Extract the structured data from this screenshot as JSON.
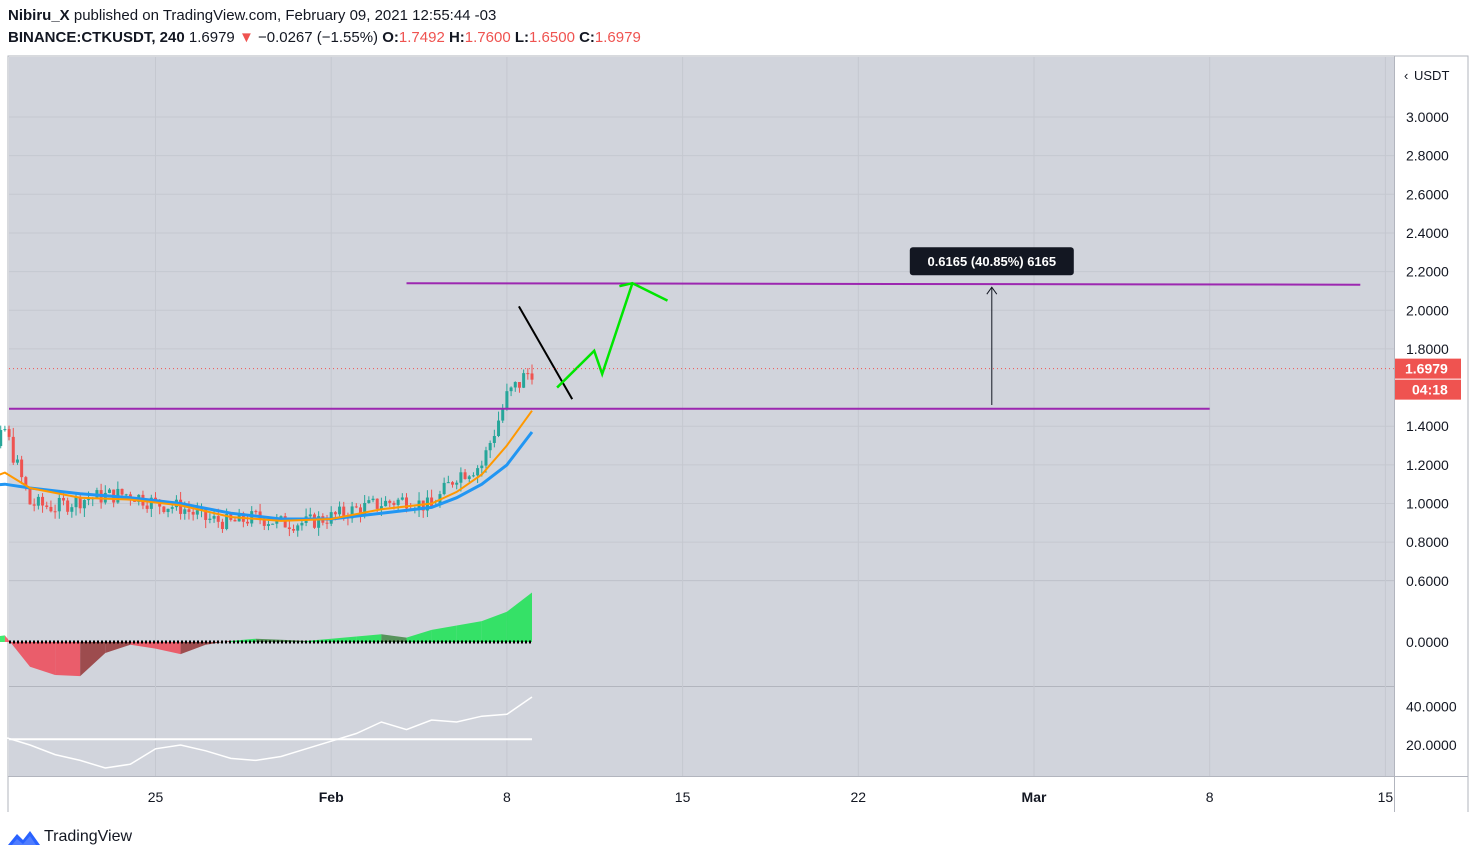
{
  "header": {
    "author": "Nibiru_X",
    "published_text": "published on TradingView.com, February 09, 2021 12:55:44 -03",
    "symbol": "BINANCE:CTKUSDT, 240",
    "last": "1.6979",
    "change": "−0.0267 (−1.55%)",
    "o_label": "O:",
    "o_value": "1.7492",
    "h_label": "H:",
    "h_value": "1.7600",
    "l_label": "L:",
    "l_value": "1.6500",
    "c_label": "C:",
    "c_value": "1.6979"
  },
  "footer": {
    "brand": "TradingView"
  },
  "colors": {
    "background": "#d1d4dc",
    "up": "#26a69a",
    "down": "#ef5350",
    "ema_fast": "#ff9800",
    "ema_slow": "#2196f3",
    "level_line": "#9c27b0",
    "projection": "#00e600",
    "trendline": "#000000",
    "last_price_tag": "#ef5350",
    "tooltip_bg": "#131722"
  },
  "chart_data": {
    "type": "candlestick",
    "price_scale": {
      "unit": "USDT",
      "ticks": [
        "3.0000",
        "2.8000",
        "2.6000",
        "2.4000",
        "2.2000",
        "2.0000",
        "1.8000",
        "1.4000",
        "1.2000",
        "1.0000",
        "0.8000",
        "0.6000"
      ],
      "ylim": [
        0.6,
        3.1
      ]
    },
    "time_axis": {
      "ticks": [
        "25",
        "Feb",
        "8",
        "15",
        "22",
        "Mar",
        "8",
        "15"
      ],
      "tick_dates": [
        "2021-01-25",
        "2021-02-01",
        "2021-02-08",
        "2021-02-15",
        "2021-02-22",
        "2021-03-01",
        "2021-03-08",
        "2021-03-15"
      ],
      "xlim": [
        "2021-01-17",
        "2021-03-15"
      ]
    },
    "last_price": {
      "value": "1.6979",
      "countdown": "04:18"
    },
    "close_series": [
      [
        "2021-01-17",
        1.15
      ],
      [
        "2021-01-18",
        1.08
      ],
      [
        "2021-01-19",
        1.38
      ],
      [
        "2021-01-20",
        1.0
      ],
      [
        "2021-01-21",
        0.98
      ],
      [
        "2021-01-22",
        1.02
      ],
      [
        "2021-01-23",
        1.04
      ],
      [
        "2021-01-24",
        1.05
      ],
      [
        "2021-01-25",
        1.0
      ],
      [
        "2021-01-26",
        0.98
      ],
      [
        "2021-01-27",
        0.92
      ],
      [
        "2021-01-28",
        0.9
      ],
      [
        "2021-01-29",
        0.93
      ],
      [
        "2021-01-30",
        0.9
      ],
      [
        "2021-01-31",
        0.9
      ],
      [
        "2021-02-01",
        0.93
      ],
      [
        "2021-02-02",
        0.97
      ],
      [
        "2021-02-03",
        1.0
      ],
      [
        "2021-02-04",
        1.02
      ],
      [
        "2021-02-05",
        0.98
      ],
      [
        "2021-02-06",
        1.15
      ],
      [
        "2021-02-07",
        1.2
      ],
      [
        "2021-02-08",
        1.55
      ],
      [
        "2021-02-09",
        1.6979
      ]
    ],
    "ema_fast": [
      [
        "2021-01-17",
        1.1
      ],
      [
        "2021-01-18",
        1.11
      ],
      [
        "2021-01-19",
        1.16
      ],
      [
        "2021-01-20",
        1.08
      ],
      [
        "2021-01-22",
        1.03
      ],
      [
        "2021-01-24",
        1.02
      ],
      [
        "2021-01-26",
        0.99
      ],
      [
        "2021-01-28",
        0.93
      ],
      [
        "2021-01-30",
        0.91
      ],
      [
        "2021-02-01",
        0.92
      ],
      [
        "2021-02-03",
        0.97
      ],
      [
        "2021-02-05",
        1.0
      ],
      [
        "2021-02-06",
        1.06
      ],
      [
        "2021-02-07",
        1.15
      ],
      [
        "2021-02-08",
        1.3
      ],
      [
        "2021-02-09",
        1.48
      ]
    ],
    "ema_slow": [
      [
        "2021-01-17",
        1.08
      ],
      [
        "2021-01-18",
        1.09
      ],
      [
        "2021-01-19",
        1.1
      ],
      [
        "2021-01-20",
        1.08
      ],
      [
        "2021-01-22",
        1.05
      ],
      [
        "2021-01-24",
        1.03
      ],
      [
        "2021-01-26",
        1.0
      ],
      [
        "2021-01-28",
        0.95
      ],
      [
        "2021-01-30",
        0.92
      ],
      [
        "2021-02-01",
        0.92
      ],
      [
        "2021-02-03",
        0.95
      ],
      [
        "2021-02-05",
        0.98
      ],
      [
        "2021-02-06",
        1.03
      ],
      [
        "2021-02-07",
        1.1
      ],
      [
        "2021-02-08",
        1.2
      ],
      [
        "2021-02-09",
        1.37
      ]
    ],
    "drawings": {
      "resistance_level": {
        "value": 2.14,
        "from": "2021-02-04",
        "to": "2021-03-14"
      },
      "support_level": {
        "value": 1.49,
        "from": "2021-01-17",
        "to": "2021-03-08"
      },
      "trendline": {
        "from": [
          "2021-02-08",
          2.02
        ],
        "to": [
          "2021-02-11",
          1.54
        ]
      },
      "projection_path": [
        [
          "2021-02-10",
          1.6
        ],
        [
          "2021-02-11",
          1.79
        ],
        [
          "2021-02-11",
          1.67
        ],
        [
          "2021-02-13",
          2.14
        ],
        [
          "2021-02-14",
          2.05
        ]
      ],
      "measure": {
        "date": "2021-02-27",
        "from": 1.52,
        "to": 2.14,
        "label": "0.6165 (40.85%) 6165"
      }
    },
    "oscillator_1": {
      "ticks": [
        "0.0000"
      ],
      "series": [
        [
          "2021-01-17",
          0.12
        ],
        [
          "2021-01-18",
          0.06
        ],
        [
          "2021-01-19",
          0.12
        ],
        [
          "2021-01-20",
          -0.45
        ],
        [
          "2021-01-21",
          -0.6
        ],
        [
          "2021-01-22",
          -0.62
        ],
        [
          "2021-01-23",
          -0.2
        ],
        [
          "2021-01-24",
          -0.05
        ],
        [
          "2021-01-25",
          -0.12
        ],
        [
          "2021-01-26",
          -0.22
        ],
        [
          "2021-01-27",
          -0.05
        ],
        [
          "2021-01-28",
          0.02
        ],
        [
          "2021-01-29",
          0.06
        ],
        [
          "2021-01-30",
          0.04
        ],
        [
          "2021-01-31",
          0.02
        ],
        [
          "2021-02-01",
          0.06
        ],
        [
          "2021-02-02",
          0.1
        ],
        [
          "2021-02-03",
          0.14
        ],
        [
          "2021-02-04",
          0.08
        ],
        [
          "2021-02-05",
          0.22
        ],
        [
          "2021-02-06",
          0.3
        ],
        [
          "2021-02-07",
          0.38
        ],
        [
          "2021-02-08",
          0.55
        ],
        [
          "2021-02-09",
          0.9
        ]
      ]
    },
    "oscillator_2": {
      "ticks": [
        "40.0000",
        "20.0000"
      ],
      "ylim": [
        5,
        50
      ],
      "reference_level": 23,
      "series": [
        [
          "2021-01-17",
          23
        ],
        [
          "2021-01-18",
          21
        ],
        [
          "2021-01-19",
          24
        ],
        [
          "2021-01-20",
          20
        ],
        [
          "2021-01-21",
          15
        ],
        [
          "2021-01-22",
          12
        ],
        [
          "2021-01-23",
          8
        ],
        [
          "2021-01-24",
          10
        ],
        [
          "2021-01-25",
          18
        ],
        [
          "2021-01-26",
          20
        ],
        [
          "2021-01-27",
          17
        ],
        [
          "2021-01-28",
          13
        ],
        [
          "2021-01-29",
          12
        ],
        [
          "2021-01-30",
          14
        ],
        [
          "2021-01-31",
          18
        ],
        [
          "2021-02-01",
          22
        ],
        [
          "2021-02-02",
          26
        ],
        [
          "2021-02-03",
          32
        ],
        [
          "2021-02-04",
          28
        ],
        [
          "2021-02-05",
          33
        ],
        [
          "2021-02-06",
          32
        ],
        [
          "2021-02-07",
          35
        ],
        [
          "2021-02-08",
          36
        ],
        [
          "2021-02-09",
          45
        ]
      ]
    }
  }
}
